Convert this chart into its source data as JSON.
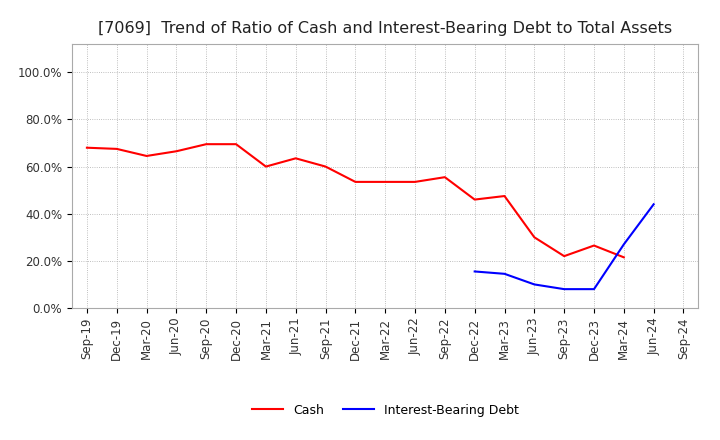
{
  "title": "[7069]  Trend of Ratio of Cash and Interest-Bearing Debt to Total Assets",
  "x_labels": [
    "Sep-19",
    "Dec-19",
    "Mar-20",
    "Jun-20",
    "Sep-20",
    "Dec-20",
    "Mar-21",
    "Jun-21",
    "Sep-21",
    "Dec-21",
    "Mar-22",
    "Jun-22",
    "Sep-22",
    "Dec-22",
    "Mar-23",
    "Jun-23",
    "Sep-23",
    "Dec-23",
    "Mar-24",
    "Jun-24",
    "Sep-24"
  ],
  "cash_values": [
    0.68,
    0.675,
    0.645,
    0.665,
    0.695,
    0.695,
    0.6,
    0.635,
    0.6,
    0.535,
    0.535,
    0.535,
    0.555,
    0.46,
    0.475,
    0.3,
    0.22,
    0.265,
    0.215,
    null,
    null
  ],
  "debt_values": [
    null,
    null,
    null,
    null,
    null,
    null,
    null,
    null,
    null,
    null,
    null,
    null,
    null,
    0.155,
    0.145,
    0.1,
    0.08,
    0.08,
    0.27,
    0.44,
    null
  ],
  "cash_color": "#FF0000",
  "debt_color": "#0000FF",
  "background_color": "#FFFFFF",
  "plot_bg_color": "#FFFFFF",
  "grid_color": "#AAAAAA",
  "ylim": [
    0.0,
    1.12
  ],
  "yticks": [
    0.0,
    0.2,
    0.4,
    0.6,
    0.8,
    1.0
  ],
  "legend_cash": "Cash",
  "legend_debt": "Interest-Bearing Debt",
  "title_fontsize": 11.5,
  "tick_fontsize": 8.5
}
